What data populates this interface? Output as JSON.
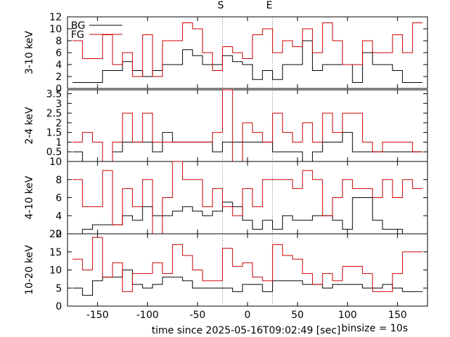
{
  "chart_data": {
    "type": "line",
    "xlabel": "time since 2025-05-16T09:02:49 [sec]",
    "binsize_label": "binsize = 10s",
    "xlim": [
      -180,
      180
    ],
    "xticks": [
      -150,
      -100,
      -50,
      0,
      50,
      100,
      150
    ],
    "markers": [
      {
        "label": "S",
        "x": -25
      },
      {
        "label": "E",
        "x": 25
      }
    ],
    "legend": {
      "position": "top-left",
      "entries": [
        "BG",
        "FG"
      ]
    },
    "colors": {
      "BG": "#000000",
      "FG": "#cc0000"
    },
    "panels": [
      {
        "ylabel": "3-10 keV",
        "ylim": [
          0,
          12
        ],
        "yticks": [
          0,
          2,
          4,
          6,
          8,
          10,
          12
        ],
        "series": [
          {
            "name": "BG",
            "x": [
              -170,
              -160,
              -150,
              -140,
              -130,
              -120,
              -110,
              -100,
              -90,
              -80,
              -70,
              -60,
              -50,
              -40,
              -30,
              -20,
              -10,
              0,
              10,
              20,
              30,
              40,
              50,
              60,
              70,
              80,
              90,
              100,
              110,
              120,
              130,
              140,
              150,
              160,
              170
            ],
            "values": [
              1,
              1,
              1,
              3,
              3,
              4.5,
              3,
              2,
              3,
              4,
              4,
              6.5,
              5.5,
              4,
              4,
              5.5,
              4.5,
              4,
              1.5,
              3,
              1.5,
              4,
              4,
              8,
              3,
              4,
              4,
              4,
              1,
              6,
              4,
              4,
              3,
              1,
              1
            ]
          },
          {
            "name": "FG",
            "x": [
              -170,
              -160,
              -150,
              -140,
              -130,
              -120,
              -110,
              -100,
              -90,
              -80,
              -70,
              -60,
              -50,
              -40,
              -30,
              -20,
              -10,
              0,
              10,
              20,
              30,
              40,
              50,
              60,
              70,
              80,
              90,
              100,
              110,
              120,
              130,
              140,
              150,
              160,
              170
            ],
            "values": [
              8,
              5,
              5,
              9,
              4,
              6,
              2,
              9,
              2,
              8,
              8,
              11,
              10,
              6,
              3,
              7,
              6,
              5,
              9,
              10,
              6,
              8,
              7,
              10,
              6,
              11,
              8,
              4,
              4,
              8,
              6,
              6,
              9,
              6,
              11
            ]
          }
        ]
      },
      {
        "ylabel": "2-4 keV",
        "ylim": [
          0,
          3.7
        ],
        "yticks": [
          0.5,
          1,
          1.5,
          2,
          2.5,
          3,
          3.5
        ],
        "tick_labels": [
          "0.5",
          "1",
          "1.5",
          "2",
          "2.5",
          "3",
          "3.5"
        ],
        "series": [
          {
            "name": "BG",
            "x": [
              -170,
              -160,
              -150,
              -140,
              -130,
              -120,
              -110,
              -100,
              -90,
              -80,
              -70,
              -60,
              -50,
              -40,
              -30,
              -20,
              -10,
              0,
              10,
              20,
              30,
              40,
              50,
              60,
              70,
              80,
              90,
              100,
              110,
              120,
              130,
              140,
              150,
              160,
              170
            ],
            "values": [
              0.5,
              0,
              0,
              0,
              0.5,
              1,
              1,
              1,
              0.5,
              1.5,
              1,
              1,
              1,
              1,
              0.5,
              1,
              1,
              1,
              1,
              1,
              0.5,
              0.5,
              0.5,
              0,
              0.5,
              1,
              1,
              1.5,
              0.5,
              0.5,
              0.5,
              0.5,
              0.5,
              0.5,
              0.5
            ]
          },
          {
            "name": "FG",
            "x": [
              -170,
              -160,
              -150,
              -140,
              -130,
              -120,
              -110,
              -100,
              -90,
              -80,
              -70,
              -60,
              -50,
              -40,
              -30,
              -20,
              -10,
              0,
              10,
              20,
              30,
              40,
              50,
              60,
              70,
              80,
              90,
              100,
              110,
              120,
              130,
              140,
              150,
              160,
              170
            ],
            "values": [
              1,
              1.5,
              1,
              0,
              1,
              2.5,
              1,
              2.5,
              1,
              1,
              1,
              1,
              1,
              1,
              1.5,
              3.7,
              0,
              2,
              1.5,
              1,
              2.5,
              1.5,
              1,
              2,
              1,
              2.5,
              1.5,
              2.5,
              2.5,
              1,
              0.5,
              1,
              1,
              1,
              0.5
            ]
          }
        ]
      },
      {
        "ylabel": "4-10 keV",
        "ylim": [
          2,
          10
        ],
        "yticks": [
          2,
          4,
          6,
          8,
          10
        ],
        "series": [
          {
            "name": "BG",
            "x": [
              -170,
              -160,
              -150,
              -140,
              -130,
              -120,
              -110,
              -100,
              -90,
              -80,
              -70,
              -60,
              -50,
              -40,
              -30,
              -20,
              -10,
              0,
              10,
              20,
              30,
              40,
              50,
              60,
              70,
              80,
              90,
              100,
              110,
              120,
              130,
              140,
              150,
              160,
              170
            ],
            "values": [
              2,
              2.5,
              3,
              3,
              3,
              4,
              3.5,
              5,
              4,
              4,
              4.5,
              5,
              4.5,
              4,
              4.5,
              5.5,
              5,
              3.5,
              2.5,
              3.5,
              2.5,
              4,
              3.5,
              3.5,
              4,
              4,
              3.5,
              2.5,
              6,
              6,
              3.5,
              2.5,
              2.5,
              2,
              2
            ]
          },
          {
            "name": "FG",
            "x": [
              -170,
              -160,
              -150,
              -140,
              -130,
              -120,
              -110,
              -100,
              -90,
              -80,
              -70,
              -60,
              -50,
              -40,
              -30,
              -20,
              -10,
              0,
              10,
              20,
              30,
              40,
              50,
              60,
              70,
              80,
              90,
              100,
              110,
              120,
              130,
              140,
              150,
              160,
              170
            ],
            "values": [
              8,
              5,
              5,
              9,
              3,
              7,
              5,
              8,
              2,
              6,
              10,
              8,
              8,
              5,
              7,
              5,
              4,
              7,
              5,
              8,
              8,
              8,
              7,
              9,
              8,
              4,
              6,
              8,
              7,
              7,
              6,
              8,
              6,
              8,
              7
            ]
          }
        ]
      },
      {
        "ylabel": "10-20 keV",
        "ylim": [
          0,
          20
        ],
        "yticks": [
          0,
          5,
          10,
          15,
          20
        ],
        "series": [
          {
            "name": "BG",
            "x": [
              -170,
              -160,
              -150,
              -140,
              -130,
              -120,
              -110,
              -100,
              -90,
              -80,
              -70,
              -60,
              -50,
              -40,
              -30,
              -20,
              -10,
              0,
              10,
              20,
              30,
              40,
              50,
              60,
              70,
              80,
              90,
              100,
              110,
              120,
              130,
              140,
              150,
              160,
              170
            ],
            "values": [
              5,
              3,
              7,
              8,
              8,
              10,
              6,
              5,
              6,
              8,
              8,
              7,
              5,
              5,
              5,
              5,
              4,
              6,
              6,
              4,
              7,
              7,
              7,
              6,
              6,
              5,
              6,
              6,
              6,
              5,
              5,
              6,
              5,
              4,
              4
            ]
          },
          {
            "name": "FG",
            "x": [
              -170,
              -160,
              -150,
              -140,
              -130,
              -120,
              -110,
              -100,
              -90,
              -80,
              -70,
              -60,
              -50,
              -40,
              -30,
              -20,
              -10,
              0,
              10,
              20,
              30,
              40,
              50,
              60,
              70,
              80,
              90,
              100,
              110,
              120,
              130,
              140,
              150,
              160,
              170
            ],
            "values": [
              13,
              10,
              19,
              8,
              12,
              4,
              9,
              9,
              12,
              9,
              17,
              14,
              10,
              7,
              7,
              16,
              11,
              12,
              8,
              7,
              17,
              14,
              13,
              9,
              6,
              9,
              7,
              11,
              11,
              9,
              4,
              4,
              9,
              15,
              15
            ]
          }
        ]
      }
    ]
  }
}
